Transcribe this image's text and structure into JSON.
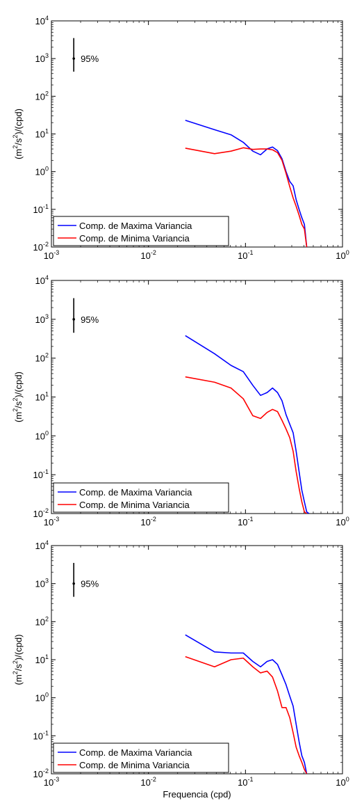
{
  "chart_data": [
    {
      "type": "line",
      "xscale": "log",
      "yscale": "log",
      "xlim": [
        0.001,
        1
      ],
      "ylim": [
        0.01,
        10000
      ],
      "xticks": [
        {
          "value": 0.001,
          "base": "10",
          "exp": "-3"
        },
        {
          "value": 0.01,
          "base": "10",
          "exp": "-2"
        },
        {
          "value": 0.1,
          "base": "10",
          "exp": "-1"
        },
        {
          "value": 1,
          "base": "10",
          "exp": "0"
        }
      ],
      "yticks": [
        {
          "value": 0.01,
          "base": "10",
          "exp": "-2"
        },
        {
          "value": 0.1,
          "base": "10",
          "exp": "-1"
        },
        {
          "value": 1,
          "base": "10",
          "exp": "0"
        },
        {
          "value": 10,
          "base": "10",
          "exp": "1"
        },
        {
          "value": 100,
          "base": "10",
          "exp": "2"
        },
        {
          "value": 1000,
          "base": "10",
          "exp": "3"
        },
        {
          "value": 10000,
          "base": "10",
          "exp": "4"
        }
      ],
      "ylabel": {
        "pre": "(m",
        "sup1": "2",
        "mid": "/s",
        "sup2": "2",
        "post": ")/(cpd)"
      },
      "xlabel": "",
      "grid": false,
      "legend_position": "bottom-left",
      "confidence_bar": {
        "label": "95%",
        "x": 0.0017,
        "center": 1000,
        "low": 450,
        "high": 3500
      },
      "series": [
        {
          "name": "Comp. de Maxima Variancia",
          "color": "#0000ff",
          "x": [
            0.024,
            0.048,
            0.071,
            0.095,
            0.119,
            0.143,
            0.167,
            0.19,
            0.214,
            0.238,
            0.262,
            0.286,
            0.31,
            0.333,
            0.357,
            0.381,
            0.405,
            0.428
          ],
          "y": [
            23,
            13,
            9.5,
            6,
            3.5,
            2.8,
            4,
            4.5,
            3.6,
            2.2,
            1.0,
            0.55,
            0.42,
            0.18,
            0.1,
            0.06,
            0.04,
            0.01
          ]
        },
        {
          "name": "Comp. de Minima Variancia",
          "color": "#ff0000",
          "x": [
            0.024,
            0.048,
            0.071,
            0.095,
            0.119,
            0.143,
            0.167,
            0.19,
            0.214,
            0.238,
            0.262,
            0.286,
            0.31,
            0.333,
            0.357,
            0.381,
            0.405,
            0.428
          ],
          "y": [
            4.2,
            3.0,
            3.5,
            4.3,
            3.9,
            4.0,
            4.0,
            3.8,
            3.2,
            2.0,
            0.9,
            0.4,
            0.2,
            0.12,
            0.07,
            0.04,
            0.03,
            0.01
          ]
        }
      ]
    },
    {
      "type": "line",
      "xscale": "log",
      "yscale": "log",
      "xlim": [
        0.001,
        1
      ],
      "ylim": [
        0.01,
        10000
      ],
      "xticks": [
        {
          "value": 0.001,
          "base": "10",
          "exp": "-3"
        },
        {
          "value": 0.01,
          "base": "10",
          "exp": "-2"
        },
        {
          "value": 0.1,
          "base": "10",
          "exp": "-1"
        },
        {
          "value": 1,
          "base": "10",
          "exp": "0"
        }
      ],
      "yticks": [
        {
          "value": 0.01,
          "base": "10",
          "exp": "-2"
        },
        {
          "value": 0.1,
          "base": "10",
          "exp": "-1"
        },
        {
          "value": 1,
          "base": "10",
          "exp": "0"
        },
        {
          "value": 10,
          "base": "10",
          "exp": "1"
        },
        {
          "value": 100,
          "base": "10",
          "exp": "2"
        },
        {
          "value": 1000,
          "base": "10",
          "exp": "3"
        },
        {
          "value": 10000,
          "base": "10",
          "exp": "4"
        }
      ],
      "ylabel": {
        "pre": "(m",
        "sup1": "2",
        "mid": "/s",
        "sup2": "2",
        "post": ")/(cpd)"
      },
      "xlabel": "",
      "grid": false,
      "legend_position": "bottom-left",
      "confidence_bar": {
        "label": "95%",
        "x": 0.0017,
        "center": 1000,
        "low": 450,
        "high": 3500
      },
      "series": [
        {
          "name": "Comp. de Maxima Variancia",
          "color": "#0000ff",
          "x": [
            0.024,
            0.048,
            0.071,
            0.095,
            0.119,
            0.143,
            0.167,
            0.19,
            0.214,
            0.238,
            0.262,
            0.286,
            0.31,
            0.333,
            0.357,
            0.381,
            0.405,
            0.428,
            0.452
          ],
          "y": [
            380,
            130,
            65,
            45,
            20,
            11,
            13,
            17,
            13,
            8,
            3.5,
            2,
            1.2,
            0.4,
            0.12,
            0.04,
            0.02,
            0.011,
            0.01
          ]
        },
        {
          "name": "Comp. de Minima Variancia",
          "color": "#ff0000",
          "x": [
            0.024,
            0.048,
            0.071,
            0.095,
            0.119,
            0.143,
            0.167,
            0.19,
            0.214,
            0.238,
            0.262,
            0.286,
            0.31,
            0.333,
            0.357,
            0.381,
            0.405,
            0.428
          ],
          "y": [
            33,
            24,
            17,
            9,
            3.3,
            2.8,
            4.0,
            4.8,
            4.2,
            2.5,
            1.5,
            0.9,
            0.4,
            0.12,
            0.045,
            0.02,
            0.011,
            0.01
          ]
        }
      ]
    },
    {
      "type": "line",
      "xscale": "log",
      "yscale": "log",
      "xlim": [
        0.001,
        1
      ],
      "ylim": [
        0.01,
        10000
      ],
      "xticks": [
        {
          "value": 0.001,
          "base": "10",
          "exp": "-3"
        },
        {
          "value": 0.01,
          "base": "10",
          "exp": "-2"
        },
        {
          "value": 0.1,
          "base": "10",
          "exp": "-1"
        },
        {
          "value": 1,
          "base": "10",
          "exp": "0"
        }
      ],
      "yticks": [
        {
          "value": 0.01,
          "base": "10",
          "exp": "-2"
        },
        {
          "value": 0.1,
          "base": "10",
          "exp": "-1"
        },
        {
          "value": 1,
          "base": "10",
          "exp": "0"
        },
        {
          "value": 10,
          "base": "10",
          "exp": "1"
        },
        {
          "value": 100,
          "base": "10",
          "exp": "2"
        },
        {
          "value": 1000,
          "base": "10",
          "exp": "3"
        },
        {
          "value": 10000,
          "base": "10",
          "exp": "4"
        }
      ],
      "ylabel": {
        "pre": "(m",
        "sup1": "2",
        "mid": "/s",
        "sup2": "2",
        "post": ")/(cpd)"
      },
      "xlabel": "Frequencia (cpd)",
      "grid": false,
      "legend_position": "bottom-left",
      "confidence_bar": {
        "label": "95%",
        "x": 0.0017,
        "center": 1000,
        "low": 450,
        "high": 3500
      },
      "series": [
        {
          "name": "Comp. de Maxima Variancia",
          "color": "#0000ff",
          "x": [
            0.024,
            0.048,
            0.071,
            0.095,
            0.119,
            0.143,
            0.167,
            0.19,
            0.214,
            0.238,
            0.262,
            0.286,
            0.31,
            0.333,
            0.357,
            0.381,
            0.405,
            0.428
          ],
          "y": [
            45,
            16,
            15,
            15,
            9,
            6.5,
            9,
            10,
            7.5,
            4,
            2.2,
            1.1,
            0.6,
            0.2,
            0.07,
            0.03,
            0.02,
            0.01
          ]
        },
        {
          "name": "Comp. de Minima Variancia",
          "color": "#ff0000",
          "x": [
            0.024,
            0.048,
            0.071,
            0.095,
            0.119,
            0.143,
            0.167,
            0.19,
            0.214,
            0.238,
            0.262,
            0.286,
            0.31,
            0.333,
            0.357,
            0.381,
            0.405,
            0.428
          ],
          "y": [
            12,
            6.5,
            10,
            11,
            6.5,
            4.5,
            5.0,
            3.5,
            1.5,
            0.55,
            0.55,
            0.3,
            0.12,
            0.05,
            0.03,
            0.02,
            0.013,
            0.01
          ]
        }
      ]
    }
  ]
}
